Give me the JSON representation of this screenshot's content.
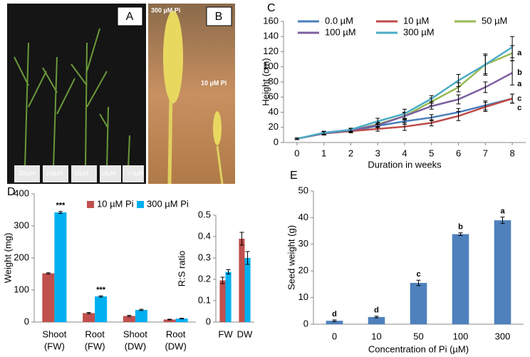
{
  "photo_a": {
    "label": "A",
    "pot_labels": [
      "300µM",
      "100µM",
      "50µM",
      "10µM",
      "0.0µM"
    ]
  },
  "photo_b": {
    "label": "B",
    "top_label": "300 µM Pi",
    "side_label": "10 µM Pi"
  },
  "chart_data": [
    {
      "type": "line",
      "panel_label": "C",
      "x_label": "Duration in weeks",
      "y_label": "Height (cm)",
      "x": [
        0,
        1,
        2,
        3,
        4,
        5,
        6,
        7,
        8
      ],
      "xlim": [
        -0.5,
        8.5
      ],
      "xticks": [
        0,
        1,
        2,
        3,
        4,
        5,
        6,
        7,
        8
      ],
      "ylim": [
        0,
        160
      ],
      "yticks": [
        0,
        20,
        40,
        60,
        80,
        100,
        120,
        140,
        160
      ],
      "series": [
        {
          "name": "0.0 µM",
          "color": "#4a7ebb",
          "values": [
            5,
            12,
            15,
            22,
            28,
            33,
            40,
            49,
            58
          ],
          "errors": [
            1,
            2,
            2,
            3,
            4,
            4,
            5,
            6,
            6
          ],
          "letter": "c"
        },
        {
          "name": "10 µM",
          "color": "#be4b48",
          "values": [
            5,
            12,
            15,
            18,
            21,
            26,
            35,
            47,
            58
          ],
          "errors": [
            1,
            2,
            2,
            3,
            5,
            4,
            6,
            6,
            6
          ],
          "letter": "c"
        },
        {
          "name": "50 µM",
          "color": "#98b954",
          "values": [
            5,
            12,
            16,
            24,
            35,
            54,
            73,
            103,
            118
          ],
          "errors": [
            1,
            2,
            2,
            3,
            5,
            5,
            6,
            12,
            10
          ],
          "letter": "a"
        },
        {
          "name": "100 µM",
          "color": "#7d60a0",
          "values": [
            5,
            12,
            16,
            23,
            35,
            48,
            57,
            73,
            92
          ],
          "errors": [
            1,
            2,
            2,
            3,
            4,
            4,
            6,
            7,
            16
          ],
          "letter": "b"
        },
        {
          "name": "300 µM",
          "color": "#4bacc6",
          "values": [
            5,
            13,
            17,
            28,
            38,
            58,
            82,
            103,
            126
          ],
          "errors": [
            1,
            2,
            2,
            4,
            6,
            4,
            8,
            14,
            14
          ],
          "letter": "a"
        }
      ]
    },
    {
      "type": "bar",
      "panel_label": "D",
      "y_label": "Weight (mg)",
      "categories": [
        [
          "Shoot",
          "(FW)"
        ],
        [
          "Root",
          "(FW)"
        ],
        [
          "Shoot",
          "(DW)"
        ],
        [
          "Root",
          "(DW)"
        ]
      ],
      "ylim": [
        0,
        400
      ],
      "yticks": [
        0,
        100,
        200,
        300,
        400
      ],
      "series": [
        {
          "name": "10 µM Pi",
          "color": "#c0504d",
          "values": [
            152,
            28,
            19,
            8
          ],
          "errors": [
            2,
            2,
            2,
            1
          ]
        },
        {
          "name": "300 µM Pi",
          "color": "#00b0f0",
          "values": [
            342,
            80,
            38,
            11
          ],
          "errors": [
            3,
            2,
            2,
            1
          ],
          "marks": [
            "***",
            "***",
            null,
            null
          ]
        }
      ]
    },
    {
      "type": "bar",
      "y_label": "R:S ratio",
      "categories": [
        "FW",
        "DW"
      ],
      "ylim": [
        0,
        0.5
      ],
      "yticks": [
        0,
        0.1,
        0.2,
        0.3,
        0.4,
        0.5
      ],
      "series": [
        {
          "color": "#c0504d",
          "values": [
            0.195,
            0.39
          ],
          "errors": [
            0.015,
            0.03
          ]
        },
        {
          "color": "#00b0f0",
          "values": [
            0.235,
            0.3
          ],
          "errors": [
            0.01,
            0.03
          ]
        }
      ]
    },
    {
      "type": "bar",
      "panel_label": "E",
      "x_label": "Concentration of Pi (µM)",
      "y_label": "Seed weight (g)",
      "categories": [
        "0",
        "10",
        "50",
        "100",
        "300"
      ],
      "ylim": [
        0,
        50
      ],
      "yticks": [
        0,
        10,
        20,
        30,
        40,
        50
      ],
      "series": [
        {
          "color": "#4f81bd",
          "values": [
            1.3,
            2.7,
            15.5,
            33.8,
            39
          ],
          "errors": [
            0.3,
            0.3,
            1,
            0.5,
            1.2
          ],
          "marks": [
            "d",
            "d",
            "c",
            "b",
            "a"
          ]
        }
      ]
    }
  ]
}
